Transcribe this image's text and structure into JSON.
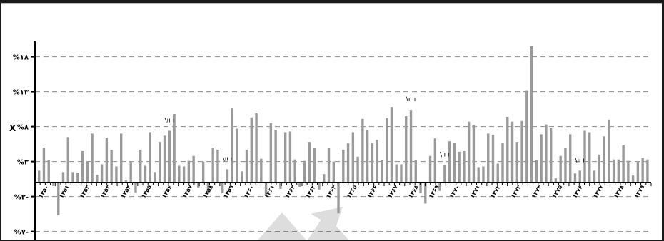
{
  "chart_data": {
    "type": "bar",
    "title": "",
    "xlabel": "",
    "ylabel": "",
    "ylim": [
      -7,
      18
    ],
    "y_ticks": [
      {
        "value": 18,
        "label": "%۱۸"
      },
      {
        "value": 13,
        "label": "%۱۳"
      },
      {
        "value": 8,
        "label": "%۸"
      },
      {
        "value": 3,
        "label": "%۳"
      },
      {
        "value": -2,
        "label": "%۲-"
      },
      {
        "value": -7,
        "label": "%۷-"
      }
    ],
    "year_labels": [
      "۱۳۵۰",
      "۱۳۵۱",
      "۱۳۵۲",
      "۱۳۵۳",
      "۱۳۵۴",
      "۱۳۵۵",
      "۱۳۵۶",
      "۱۳۵۷",
      "۱۳۵۸",
      "۱۳۵۹",
      "۱۳۶۰",
      "۱۳۶۱",
      "۱۳۶۲",
      "۱۳۶۳",
      "۱۳۶۴",
      "۱۳۶۵",
      "۱۳۶۶",
      "۱۳۶۷",
      "۱۳۶۸",
      "۱۳۶۹",
      "۱۳۷۰",
      "۱۳۷۱",
      "۱۳۷۲",
      "۱۳۷۳",
      "۱۳۷۴",
      "۱۳۷۵",
      "۱۳۷۶",
      "۱۳۷۷",
      "۱۳۷۸",
      "۱۳۷۹"
    ],
    "bar_annotations": [
      {
        "bar_index": 27,
        "label": "\\ıı ı"
      },
      {
        "bar_index": 39,
        "label": "\\ıı ı"
      },
      {
        "bar_index": 77,
        "label": "\\ıı ı"
      },
      {
        "bar_index": 84,
        "label": "\\ıı ı"
      },
      {
        "bar_index": 112,
        "label": "\\ıı ı"
      }
    ],
    "values": [
      1.7,
      5,
      3.2,
      -0.5,
      -4.7,
      1.5,
      6.5,
      1.5,
      1.4,
      4.5,
      3,
      7,
      1.1,
      2.6,
      6.4,
      4.6,
      2.3,
      7,
      0.3,
      3,
      -1.4,
      4.7,
      2.4,
      7.2,
      1.5,
      5.8,
      6.7,
      7.4,
      9.8,
      2.4,
      2.3,
      3.1,
      3.8,
      -0.7,
      3,
      -1.6,
      5,
      4.7,
      -1.5,
      1.9,
      10.6,
      7.7,
      1.6,
      4.7,
      9.3,
      9.9,
      3.4,
      -1.8,
      8.5,
      7.5,
      -0.9,
      7.2,
      7.3,
      3.3,
      -0.6,
      3.1,
      5.8,
      4.9,
      -1,
      1.2,
      4.9,
      3,
      -4.4,
      4.7,
      5.6,
      7.2,
      3.7,
      9.1,
      7.5,
      5.6,
      6.1,
      3.2,
      9.2,
      10.8,
      2.6,
      2.6,
      9.5,
      10.4,
      3.2,
      -1.5,
      -3,
      3.8,
      6.3,
      -1.2,
      2.5,
      5.9,
      5.7,
      4.4,
      4.5,
      8.7,
      8.2,
      2.2,
      2.3,
      7,
      6.8,
      2.7,
      5.7,
      9.4,
      8.7,
      5.8,
      8.8,
      13.2,
      19.5,
      3.2,
      6.9,
      8.3,
      7.8,
      0.6,
      3.8,
      4.9,
      6.9,
      1.3,
      1.7,
      7.4,
      7.2,
      1.7,
      4,
      6.6,
      9,
      3.3,
      3.3,
      5.3,
      3.1,
      1,
      3,
      3.5,
      3.3
    ],
    "grid": true,
    "legend": "none",
    "colors": {
      "bar": "#9a9a9a",
      "grid": "#8c8c8c",
      "axis": "#000000"
    }
  }
}
